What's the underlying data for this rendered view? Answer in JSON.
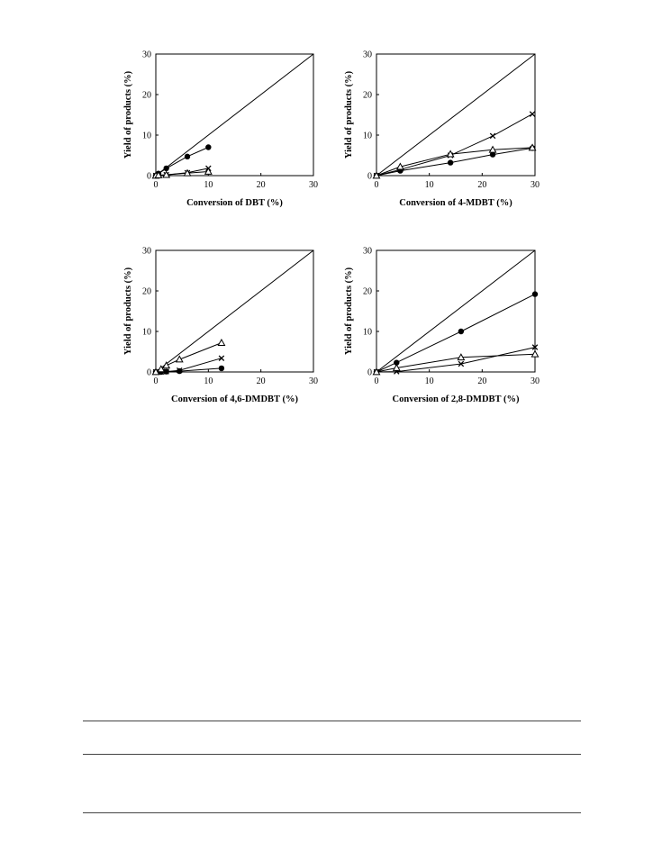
{
  "colors": {
    "ink": "#000000",
    "rule": "#444444"
  },
  "chart_data": [
    {
      "type": "scatter",
      "xlabel": "Conversion of DBT (%)",
      "ylabel": "Yield of products (%)",
      "xlim": [
        0,
        30
      ],
      "ylim": [
        0,
        30
      ],
      "xticks": [
        0,
        10,
        20,
        30
      ],
      "yticks": [
        0,
        10,
        20,
        30
      ],
      "diagonal": true,
      "series": [
        {
          "marker": "circle",
          "x": [
            0,
            0.5,
            2,
            6,
            10
          ],
          "y": [
            0,
            0.5,
            1.8,
            4.7,
            7.0
          ]
        },
        {
          "marker": "cross",
          "x": [
            0,
            0.5,
            2,
            6,
            10
          ],
          "y": [
            0,
            0.1,
            0.2,
            0.7,
            1.8
          ]
        },
        {
          "marker": "triangle",
          "x": [
            0,
            0.5,
            2,
            6,
            10
          ],
          "y": [
            0,
            0.1,
            0.2,
            0.6,
            1.0
          ]
        }
      ]
    },
    {
      "type": "scatter",
      "xlabel": "Conversion of 4-MDBT (%)",
      "ylabel": "Yield of products (%)",
      "xlim": [
        0,
        30
      ],
      "ylim": [
        0,
        30
      ],
      "xticks": [
        0,
        10,
        20,
        30
      ],
      "yticks": [
        0,
        10,
        20,
        30
      ],
      "diagonal": true,
      "series": [
        {
          "marker": "circle",
          "x": [
            0,
            4.5,
            14,
            22,
            29.5
          ],
          "y": [
            0,
            1.2,
            3.2,
            5.2,
            6.8
          ]
        },
        {
          "marker": "cross",
          "x": [
            0,
            4.5,
            14,
            22,
            29.5
          ],
          "y": [
            0,
            1.5,
            5.0,
            9.8,
            15.2
          ]
        },
        {
          "marker": "triangle",
          "x": [
            0,
            4.5,
            14,
            22,
            29.5
          ],
          "y": [
            0,
            2.2,
            5.3,
            6.4,
            6.9
          ]
        }
      ]
    },
    {
      "type": "scatter",
      "xlabel": "Conversion of 4,6-DMDBT (%)",
      "ylabel": "Yield of products (%)",
      "xlim": [
        0,
        30
      ],
      "ylim": [
        0,
        30
      ],
      "xticks": [
        0,
        10,
        20,
        30
      ],
      "yticks": [
        0,
        10,
        20,
        30
      ],
      "diagonal": true,
      "series": [
        {
          "marker": "circle",
          "x": [
            0,
            1,
            2,
            4.5,
            12.5
          ],
          "y": [
            0,
            0,
            0.1,
            0.2,
            0.9
          ]
        },
        {
          "marker": "cross",
          "x": [
            0,
            1,
            2,
            4.5,
            12.5
          ],
          "y": [
            0,
            0,
            0.1,
            0.4,
            3.4
          ]
        },
        {
          "marker": "triangle",
          "x": [
            0,
            1,
            2,
            4.5,
            12.5
          ],
          "y": [
            0,
            0.7,
            1.6,
            3.1,
            7.2
          ]
        }
      ]
    },
    {
      "type": "scatter",
      "xlabel": "Conversion of 2,8-DMDBT (%)",
      "ylabel": "Yield of products (%)",
      "xlim": [
        0,
        30
      ],
      "ylim": [
        0,
        30
      ],
      "xticks": [
        0,
        10,
        20,
        30
      ],
      "yticks": [
        0,
        10,
        20,
        30
      ],
      "diagonal": true,
      "series": [
        {
          "marker": "circle",
          "x": [
            0,
            3.8,
            16,
            30
          ],
          "y": [
            0,
            2.3,
            10.0,
            19.2
          ]
        },
        {
          "marker": "cross",
          "x": [
            0,
            3.8,
            16,
            30
          ],
          "y": [
            0,
            0.1,
            2.0,
            6.1
          ]
        },
        {
          "marker": "triangle",
          "x": [
            0,
            3.8,
            16,
            30
          ],
          "y": [
            0,
            1.0,
            3.6,
            4.4
          ]
        }
      ]
    }
  ]
}
